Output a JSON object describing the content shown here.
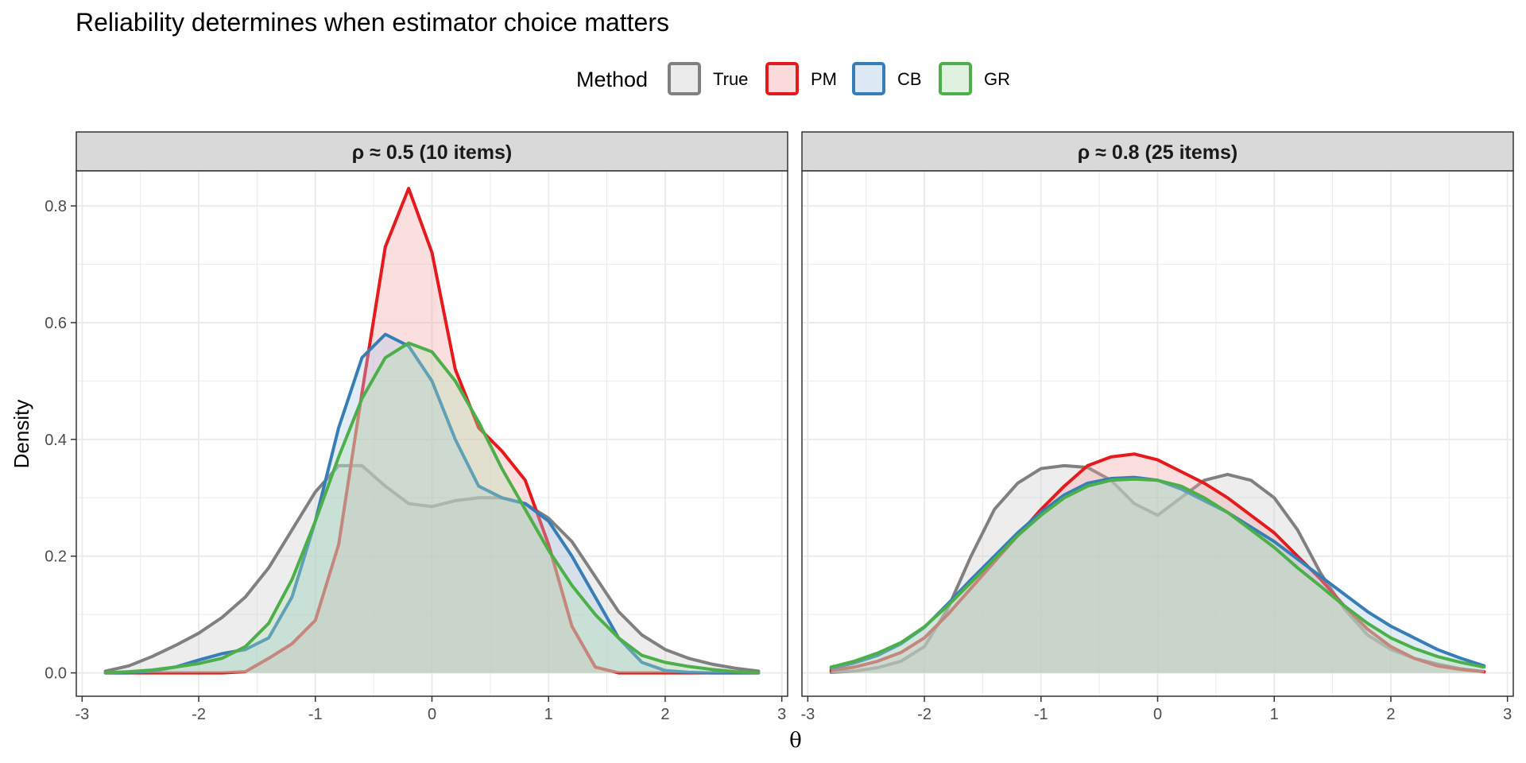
{
  "chart_data": {
    "type": "area",
    "title": "Reliability determines when estimator choice matters",
    "xlabel": "θ",
    "ylabel": "Density",
    "legend": {
      "title": "Method",
      "placement": "top",
      "entries": [
        {
          "label": "True",
          "color": "#808080",
          "fill": "#cccccc"
        },
        {
          "label": "PM",
          "color": "#e41a1c",
          "fill": "#f4a3a4"
        },
        {
          "label": "CB",
          "color": "#377eb8",
          "fill": "#a8c8e5"
        },
        {
          "label": "GR",
          "color": "#4daf4a",
          "fill": "#b2dfb0"
        }
      ]
    },
    "xlim": [
      -3.05,
      3.05
    ],
    "ylim": [
      -0.04,
      0.86
    ],
    "x_ticks": [
      -3,
      -2,
      -1,
      0,
      1,
      2,
      3
    ],
    "x_tick_labels": [
      "-3",
      "-2",
      "-1",
      "0",
      "1",
      "2",
      "3"
    ],
    "y_ticks": [
      0.0,
      0.2,
      0.4,
      0.6,
      0.8
    ],
    "y_tick_labels": [
      "0.0",
      "0.2",
      "0.4",
      "0.6",
      "0.8"
    ],
    "grid": true,
    "fill_opacity": 0.35,
    "x": [
      -2.8,
      -2.6,
      -2.4,
      -2.2,
      -2.0,
      -1.8,
      -1.6,
      -1.4,
      -1.2,
      -1.0,
      -0.8,
      -0.6,
      -0.4,
      -0.2,
      0.0,
      0.2,
      0.4,
      0.6,
      0.8,
      1.0,
      1.2,
      1.4,
      1.6,
      1.8,
      2.0,
      2.2,
      2.4,
      2.6,
      2.8
    ],
    "panels": [
      {
        "strip": "ρ ≈ 0.5  (10 items)",
        "series": [
          {
            "name": "True",
            "values": [
              0.003,
              0.012,
              0.028,
              0.047,
              0.068,
              0.095,
              0.13,
              0.18,
              0.245,
              0.31,
              0.355,
              0.355,
              0.32,
              0.29,
              0.285,
              0.295,
              0.3,
              0.3,
              0.29,
              0.265,
              0.225,
              0.165,
              0.105,
              0.065,
              0.04,
              0.025,
              0.015,
              0.008,
              0.003
            ]
          },
          {
            "name": "PM",
            "values": [
              0.0,
              0.0,
              0.0,
              0.0,
              0.0,
              0.0,
              0.002,
              0.025,
              0.05,
              0.09,
              0.22,
              0.48,
              0.73,
              0.83,
              0.72,
              0.52,
              0.42,
              0.38,
              0.33,
              0.22,
              0.08,
              0.01,
              0.0,
              0.0,
              0.0,
              0.0,
              0.0,
              0.0,
              0.0
            ]
          },
          {
            "name": "CB",
            "values": [
              0.0,
              0.0,
              0.003,
              0.01,
              0.022,
              0.033,
              0.04,
              0.06,
              0.13,
              0.26,
              0.42,
              0.54,
              0.58,
              0.56,
              0.5,
              0.4,
              0.32,
              0.3,
              0.29,
              0.26,
              0.2,
              0.13,
              0.06,
              0.018,
              0.004,
              0.001,
              0.0,
              0.0,
              0.0
            ]
          },
          {
            "name": "GR",
            "values": [
              0.0,
              0.002,
              0.005,
              0.01,
              0.016,
              0.025,
              0.045,
              0.085,
              0.16,
              0.26,
              0.37,
              0.47,
              0.54,
              0.565,
              0.55,
              0.5,
              0.43,
              0.35,
              0.28,
              0.21,
              0.15,
              0.1,
              0.06,
              0.03,
              0.018,
              0.011,
              0.006,
              0.002,
              0.0
            ]
          }
        ]
      },
      {
        "strip": "ρ ≈ 0.8  (25 items)",
        "series": [
          {
            "name": "True",
            "values": [
              0.001,
              0.003,
              0.009,
              0.02,
              0.045,
              0.11,
              0.2,
              0.28,
              0.325,
              0.35,
              0.355,
              0.352,
              0.33,
              0.29,
              0.27,
              0.3,
              0.33,
              0.34,
              0.33,
              0.3,
              0.245,
              0.17,
              0.11,
              0.065,
              0.04,
              0.025,
              0.015,
              0.007,
              0.002
            ]
          },
          {
            "name": "PM",
            "values": [
              0.004,
              0.01,
              0.02,
              0.035,
              0.06,
              0.1,
              0.145,
              0.19,
              0.235,
              0.28,
              0.32,
              0.355,
              0.37,
              0.375,
              0.365,
              0.345,
              0.325,
              0.3,
              0.27,
              0.24,
              0.2,
              0.16,
              0.115,
              0.075,
              0.045,
              0.025,
              0.012,
              0.006,
              0.002
            ]
          },
          {
            "name": "CB",
            "values": [
              0.008,
              0.017,
              0.03,
              0.05,
              0.078,
              0.118,
              0.16,
              0.2,
              0.24,
              0.275,
              0.305,
              0.325,
              0.333,
              0.335,
              0.33,
              0.315,
              0.295,
              0.275,
              0.25,
              0.225,
              0.195,
              0.165,
              0.135,
              0.105,
              0.08,
              0.06,
              0.04,
              0.025,
              0.012
            ]
          },
          {
            "name": "GR",
            "values": [
              0.01,
              0.02,
              0.034,
              0.052,
              0.079,
              0.115,
              0.155,
              0.195,
              0.235,
              0.27,
              0.3,
              0.32,
              0.33,
              0.332,
              0.33,
              0.32,
              0.3,
              0.275,
              0.245,
              0.215,
              0.18,
              0.148,
              0.115,
              0.085,
              0.06,
              0.042,
              0.028,
              0.018,
              0.01
            ]
          }
        ]
      }
    ]
  }
}
